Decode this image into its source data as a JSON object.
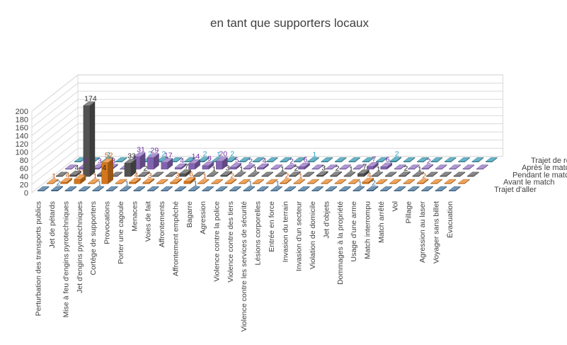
{
  "chart_data": {
    "type": "bar",
    "subtype": "3d-column",
    "title": "en tant que supporters locaux",
    "xlabel": "",
    "ylabel": "",
    "ylim": [
      0,
      200
    ],
    "yticks": [
      0,
      20,
      40,
      60,
      80,
      100,
      120,
      140,
      160,
      180,
      200
    ],
    "grid": true,
    "legend": "none",
    "categories": [
      "Perturbation des transports publics",
      "Jet de pétards",
      "Mise à feu d'engins pyrotechniques",
      "Jet d'engins pyrotechniques",
      "Cortège de supporters",
      "Provocations",
      "Porter une cagoule",
      "Menaces",
      "Voies de fait",
      "Affrontements",
      "Affrontement empêché",
      "Bagarre",
      "Agression",
      "Violence contre la police",
      "Violence contre des tiers",
      "Violence contre les services de sécurité",
      "Lésions corporelles",
      "Entrée en force",
      "Invasion du terrain",
      "Invasion d'un secteur",
      "Violation de domicile",
      "Jet d'objets",
      "Dommages à la propriété",
      "Usage d'une arme",
      "Match interrompu",
      "Match arrêté",
      "Vol",
      "Pillage",
      "Agression au laser",
      "Voyager sans billet",
      "Évacuation"
    ],
    "series": [
      {
        "name": "Trajet d'aller",
        "color": "#3a6d9a",
        "values": [
          0,
          2,
          0,
          0,
          1,
          0,
          1,
          0,
          0,
          0,
          0,
          1,
          0,
          0,
          0,
          1,
          0,
          1,
          0,
          0,
          0,
          0,
          0,
          1,
          2,
          0,
          0,
          0,
          0,
          0,
          0
        ]
      },
      {
        "name": "Avant le match",
        "color": "#e8801e",
        "label_color": "#c55a11",
        "values": [
          1,
          4,
          11,
          1,
          52,
          0,
          4,
          3,
          0,
          3,
          6,
          1,
          0,
          2,
          0,
          0,
          0,
          2,
          1,
          0,
          0,
          0,
          0,
          4,
          0,
          0,
          0,
          2,
          0,
          0,
          0
        ]
      },
      {
        "name": "Pendant le match",
        "color": "#595959",
        "label_color": "#262626",
        "values": [
          0,
          4,
          174,
          4,
          0,
          33,
          2,
          0,
          0,
          7,
          0,
          1,
          3,
          1,
          1,
          0,
          1,
          2,
          0,
          3,
          2,
          1,
          7,
          1,
          0,
          2,
          1,
          0,
          0,
          0,
          0
        ]
      },
      {
        "name": "Après le match",
        "color": "#8e6cc0",
        "label_color": "#7030a0",
        "values": [
          0,
          4,
          3,
          3,
          0,
          31,
          29,
          17,
          4,
          14,
          9,
          20,
          5,
          2,
          4,
          0,
          2,
          6,
          0,
          0,
          0,
          0,
          7,
          6,
          0,
          0,
          2,
          0,
          0,
          0,
          0
        ]
      },
      {
        "name": "Trajet de retour",
        "color": "#2e95b0",
        "label_color": "#2aa3c4",
        "values": [
          0,
          0,
          1,
          0,
          0,
          2,
          2,
          0,
          0,
          2,
          1,
          2,
          0,
          0,
          0,
          0,
          0,
          1,
          0,
          0,
          0,
          0,
          0,
          2,
          0,
          0,
          0,
          0,
          0,
          0,
          0
        ]
      }
    ]
  }
}
